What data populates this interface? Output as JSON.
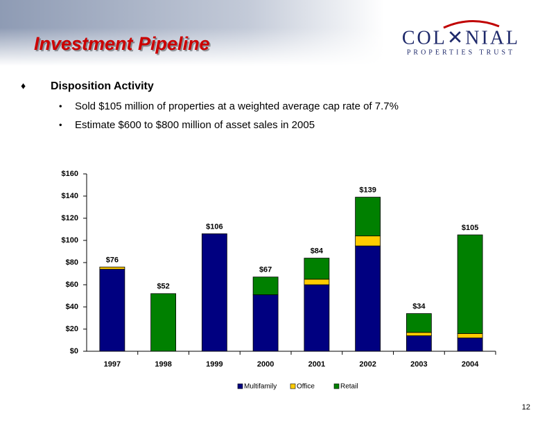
{
  "header": {
    "title": "Investment Pipeline",
    "logo_main": "COL✕NIAL",
    "logo_sub": "PROPERTIES TRUST"
  },
  "bullets": {
    "heading": "Disposition Activity",
    "items": [
      "Sold $105 million of properties at a weighted average cap rate of 7.7%",
      "Estimate $600 to $800 million of asset sales in 2005"
    ]
  },
  "page_number": "12",
  "chart_data": {
    "type": "stacked_bar",
    "categories": [
      "1997",
      "1998",
      "1999",
      "2000",
      "2001",
      "2002",
      "2003",
      "2004"
    ],
    "series": [
      {
        "name": "Multifamily",
        "color": "#000080",
        "values": [
          74,
          0,
          106,
          51,
          60,
          95,
          14,
          12
        ]
      },
      {
        "name": "Office",
        "color": "#ffcc00",
        "values": [
          2,
          0,
          0,
          0,
          5,
          9,
          3,
          4
        ]
      },
      {
        "name": "Retail",
        "color": "#008000",
        "values": [
          0,
          52,
          0,
          16,
          19,
          35,
          17,
          89
        ]
      }
    ],
    "totals": [
      76,
      52,
      106,
      67,
      84,
      139,
      34,
      105
    ],
    "total_labels": [
      "$76",
      "$52",
      "$106",
      "$67",
      "$84",
      "$139",
      "$34",
      "$105"
    ],
    "ylim": [
      0,
      160
    ],
    "yticks": [
      {
        "value": 0,
        "label": "$0"
      },
      {
        "value": 20,
        "label": "$20"
      },
      {
        "value": 40,
        "label": "$40"
      },
      {
        "value": 60,
        "label": "$60"
      },
      {
        "value": 80,
        "label": "$80"
      },
      {
        "value": 100,
        "label": "$100"
      },
      {
        "value": 120,
        "label": "$120"
      },
      {
        "value": 140,
        "label": "$140"
      },
      {
        "value": 160,
        "label": "$160"
      }
    ],
    "grid": false,
    "legend": "bottom"
  }
}
